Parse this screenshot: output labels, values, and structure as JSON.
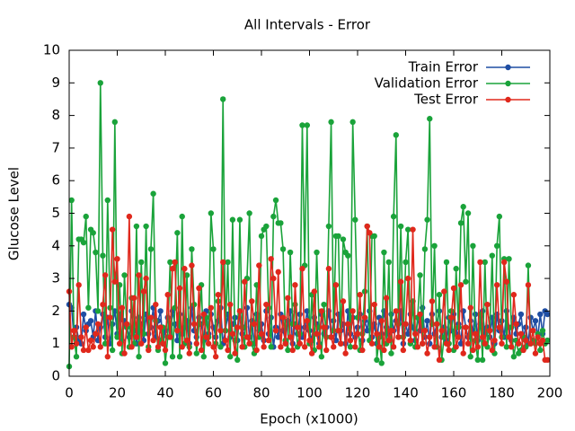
{
  "chart_data": {
    "type": "line",
    "title": "All Intervals - Error",
    "x_label": "Epoch (x1000)",
    "y_label": "Glucose Level",
    "x": [
      0,
      1,
      2,
      3,
      4,
      5,
      6,
      7,
      8,
      9,
      10,
      11,
      12,
      13,
      14,
      15,
      16,
      17,
      18,
      19,
      20,
      21,
      22,
      23,
      24,
      25,
      26,
      27,
      28,
      29,
      30,
      31,
      32,
      33,
      34,
      35,
      36,
      37,
      38,
      39,
      40,
      41,
      42,
      43,
      44,
      45,
      46,
      47,
      48,
      49,
      50,
      51,
      52,
      53,
      54,
      55,
      56,
      57,
      58,
      59,
      60,
      61,
      62,
      63,
      64,
      65,
      66,
      67,
      68,
      69,
      70,
      71,
      72,
      73,
      74,
      75,
      76,
      77,
      78,
      79,
      80,
      81,
      82,
      83,
      84,
      85,
      86,
      87,
      88,
      89,
      90,
      91,
      92,
      93,
      94,
      95,
      96,
      97,
      98,
      99,
      100,
      101,
      102,
      103,
      104,
      105,
      106,
      107,
      108,
      109,
      110,
      111,
      112,
      113,
      114,
      115,
      116,
      117,
      118,
      119,
      120,
      121,
      122,
      123,
      124,
      125,
      126,
      127,
      128,
      129,
      130,
      131,
      132,
      133,
      134,
      135,
      136,
      137,
      138,
      139,
      140,
      141,
      142,
      143,
      144,
      145,
      146,
      147,
      148,
      149,
      150,
      151,
      152,
      153,
      154,
      155,
      156,
      157,
      158,
      159,
      160,
      161,
      162,
      163,
      164,
      165,
      166,
      167,
      168,
      169,
      170,
      171,
      172,
      173,
      174,
      175,
      176,
      177,
      178,
      179,
      180,
      181,
      182,
      183,
      184,
      185,
      186,
      187,
      188,
      189,
      190,
      191,
      192,
      193,
      194,
      195,
      196,
      197,
      198,
      199
    ],
    "series": [
      {
        "name": "Train Error",
        "color": "#1f4ea3",
        "values": [
          2.2,
          2.1,
          1.2,
          1.5,
          1.1,
          1.0,
          1.9,
          1.4,
          1.6,
          1.7,
          1.2,
          2.0,
          1.1,
          1.5,
          1.9,
          1.2,
          1.8,
          1.0,
          1.6,
          2.0,
          1.3,
          1.9,
          1.1,
          1.7,
          1.5,
          1.2,
          2.0,
          1.4,
          1.0,
          1.8,
          1.6,
          1.1,
          1.9,
          1.3,
          1.5,
          2.1,
          1.2,
          1.7,
          2.0,
          1.0,
          1.4,
          1.8,
          1.2,
          2.0,
          1.6,
          1.1,
          1.9,
          1.3,
          1.5,
          1.7,
          1.0,
          2.1,
          1.4,
          1.2,
          1.8,
          1.6,
          1.1,
          2.0,
          1.3,
          1.9,
          1.5,
          1.2,
          1.7,
          2.1,
          1.0,
          1.4,
          1.9,
          1.2,
          1.6,
          1.8,
          1.1,
          2.0,
          1.3,
          1.5,
          2.1,
          1.2,
          1.7,
          1.0,
          1.9,
          1.4,
          1.6,
          1.1,
          2.0,
          1.3,
          1.8,
          0.9,
          1.5,
          1.2,
          1.9,
          1.4,
          1.1,
          1.7,
          2.0,
          1.0,
          1.6,
          1.3,
          1.9,
          1.2,
          1.5,
          2.0,
          1.4,
          1.1,
          1.8,
          1.6,
          1.0,
          1.9,
          1.3,
          1.5,
          2.0,
          1.2,
          1.7,
          1.1,
          1.9,
          1.4,
          1.6,
          1.0,
          2.0,
          1.3,
          1.8,
          1.2,
          1.5,
          1.9,
          1.1,
          1.7,
          1.4,
          2.0,
          1.2,
          1.6,
          1.0,
          1.8,
          1.3,
          2.0,
          1.5,
          1.1,
          1.9,
          1.4,
          1.7,
          1.2,
          2.0,
          1.0,
          1.6,
          1.3,
          1.9,
          1.5,
          1.1,
          1.8,
          1.4,
          2.1,
          1.2,
          1.7,
          1.0,
          1.9,
          1.3,
          1.6,
          2.0,
          1.2,
          1.5,
          1.1,
          1.8,
          1.4,
          1.9,
          1.3,
          1.6,
          1.0,
          2.0,
          1.5,
          1.2,
          1.7,
          1.4,
          1.9,
          1.1,
          1.6,
          2.0,
          1.3,
          1.5,
          1.2,
          1.8,
          1.0,
          1.9,
          1.4,
          1.7,
          1.2,
          2.0,
          1.5,
          1.1,
          1.8,
          1.3,
          1.6,
          1.9,
          1.2,
          1.5,
          1.0,
          1.8,
          1.4,
          1.7,
          1.2,
          1.9,
          1.3,
          2.0,
          1.9
        ]
      },
      {
        "name": "Validation Error",
        "color": "#1aa33a",
        "values": [
          0.3,
          5.4,
          1.2,
          0.6,
          4.2,
          4.2,
          4.1,
          4.9,
          2.1,
          4.5,
          4.4,
          3.8,
          2.0,
          9.0,
          3.7,
          1.0,
          5.4,
          2.1,
          0.8,
          7.8,
          1.2,
          2.8,
          0.7,
          3.1,
          1.5,
          0.9,
          2.4,
          1.0,
          4.6,
          0.6,
          3.5,
          1.3,
          4.6,
          0.9,
          3.9,
          5.6,
          1.7,
          0.8,
          1.1,
          1.5,
          0.4,
          1.2,
          3.5,
          0.6,
          2.1,
          4.4,
          0.6,
          4.9,
          1.0,
          3.1,
          0.9,
          3.9,
          2.2,
          0.7,
          1.6,
          2.8,
          0.6,
          1.8,
          1.2,
          5.0,
          3.9,
          1.0,
          2.3,
          0.9,
          8.5,
          1.4,
          3.5,
          0.6,
          4.8,
          1.1,
          0.5,
          4.8,
          1.5,
          0.9,
          3.0,
          5.0,
          1.0,
          0.7,
          2.8,
          1.2,
          4.3,
          4.5,
          4.6,
          2.1,
          0.9,
          4.9,
          5.4,
          4.7,
          4.7,
          3.9,
          1.1,
          0.8,
          3.8,
          1.6,
          2.2,
          0.9,
          1.3,
          7.7,
          3.4,
          7.7,
          1.0,
          2.5,
          0.8,
          3.8,
          1.5,
          0.6,
          2.2,
          1.2,
          4.6,
          7.8,
          1.4,
          4.3,
          4.3,
          1.0,
          4.2,
          3.8,
          3.7,
          0.9,
          7.8,
          4.8,
          1.8,
          0.8,
          1.3,
          2.6,
          4.6,
          1.1,
          4.3,
          4.3,
          0.5,
          1.2,
          0.4,
          3.8,
          1.0,
          3.5,
          0.7,
          4.9,
          7.4,
          1.6,
          4.6,
          1.2,
          3.5,
          4.5,
          1.0,
          2.3,
          0.9,
          1.8,
          3.1,
          1.0,
          3.9,
          4.8,
          7.9,
          1.6,
          4.0,
          0.9,
          2.5,
          0.5,
          1.2,
          3.5,
          1.0,
          2.0,
          0.8,
          3.3,
          1.5,
          4.7,
          5.2,
          2.9,
          5.0,
          0.6,
          4.0,
          1.1,
          0.5,
          1.9,
          0.5,
          3.5,
          0.9,
          1.4,
          3.7,
          0.7,
          4.0,
          4.9,
          1.2,
          3.6,
          0.9,
          3.6,
          1.5,
          0.6,
          1.1,
          0.7,
          0.8,
          1.2,
          0.9,
          3.4,
          1.0,
          1.1,
          1.0,
          1.3,
          0.8,
          1.4,
          1.0,
          1.1
        ]
      },
      {
        "name": "Test Error",
        "color": "#e0281c",
        "values": [
          2.6,
          0.9,
          1.4,
          1.0,
          2.8,
          1.2,
          0.8,
          1.5,
          0.8,
          1.1,
          0.9,
          1.3,
          1.6,
          0.9,
          2.2,
          3.1,
          0.6,
          1.8,
          4.5,
          2.9,
          3.6,
          1.0,
          2.1,
          0.7,
          1.6,
          4.9,
          0.9,
          2.4,
          1.2,
          3.1,
          1.0,
          2.6,
          3.0,
          0.8,
          1.8,
          1.1,
          2.2,
          0.9,
          1.5,
          1.0,
          0.8,
          2.5,
          1.2,
          3.3,
          3.5,
          1.4,
          2.7,
          0.9,
          3.3,
          1.1,
          0.7,
          3.4,
          1.6,
          1.0,
          2.7,
          0.8,
          1.9,
          1.2,
          1.0,
          2.1,
          0.9,
          0.6,
          2.5,
          1.4,
          3.5,
          1.1,
          0.8,
          2.2,
          1.3,
          0.7,
          1.5,
          2.0,
          0.9,
          2.9,
          1.2,
          1.0,
          2.3,
          1.6,
          0.8,
          3.4,
          1.3,
          0.9,
          2.2,
          1.1,
          3.6,
          3.0,
          1.4,
          3.2,
          0.9,
          1.8,
          1.0,
          2.4,
          1.2,
          0.8,
          2.8,
          1.5,
          1.0,
          3.3,
          0.9,
          1.7,
          1.1,
          0.7,
          2.6,
          1.3,
          0.9,
          2.0,
          1.5,
          0.8,
          3.3,
          1.2,
          0.9,
          2.8,
          1.4,
          1.0,
          2.3,
          0.7,
          1.6,
          1.1,
          2.0,
          0.9,
          1.3,
          2.5,
          0.8,
          1.8,
          4.6,
          4.4,
          1.0,
          2.2,
          1.3,
          0.9,
          1.7,
          0.8,
          2.4,
          1.1,
          1.4,
          0.9,
          2.0,
          1.2,
          2.9,
          0.8,
          1.6,
          3.0,
          1.1,
          4.5,
          1.3,
          0.9,
          1.9,
          1.0,
          1.4,
          0.7,
          1.2,
          2.3,
          0.9,
          1.6,
          0.5,
          1.4,
          2.6,
          1.0,
          0.8,
          1.8,
          2.7,
          0.9,
          1.2,
          2.8,
          0.7,
          1.5,
          1.0,
          2.1,
          0.8,
          1.3,
          0.9,
          3.5,
          1.2,
          1.0,
          2.2,
          1.4,
          0.8,
          1.1,
          2.8,
          1.5,
          1.0,
          3.5,
          2.9,
          1.2,
          0.9,
          2.5,
          1.6,
          1.0,
          1.3,
          0.8,
          1.1,
          2.8,
          1.0,
          1.4,
          0.7,
          1.2,
          1.0,
          1.1,
          0.5,
          0.5
        ]
      }
    ],
    "xlim": [
      0,
      200
    ],
    "xticks": [
      0,
      20,
      40,
      60,
      80,
      100,
      120,
      140,
      160,
      180,
      200
    ],
    "ylim": [
      0,
      10
    ],
    "yticks": [
      0,
      1,
      2,
      3,
      4,
      5,
      6,
      7,
      8,
      9,
      10
    ],
    "legend": "upper right",
    "grid": false
  }
}
